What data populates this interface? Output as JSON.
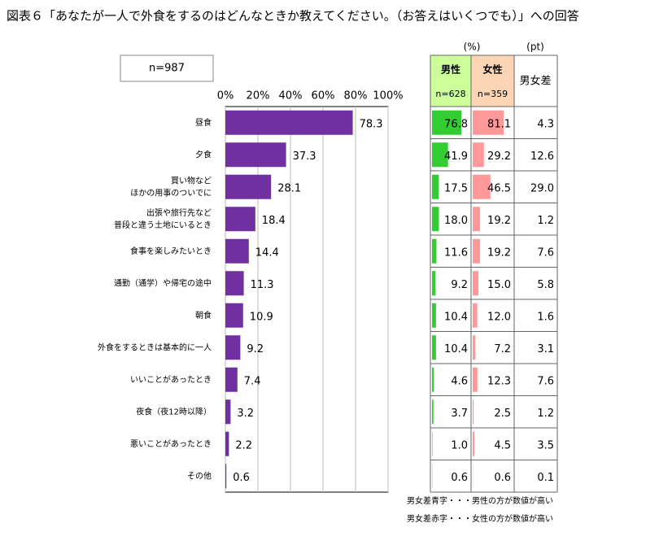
{
  "title": "図表６「あなたが一人で外食をするのはどんなときか教えてください。（お答えはいくつでも）」への回答",
  "sample_label": "n=987",
  "chart_data": {
    "type": "hbar",
    "color": "#7030a0",
    "categories": [
      [
        "昼食"
      ],
      [
        "夕食"
      ],
      [
        "買い物など",
        "ほかの用事のついでに"
      ],
      [
        "出張や旅行先など",
        "普段と違う土地にいるとき"
      ],
      [
        "食事を楽しみたいとき"
      ],
      [
        "通勤（通学）や帰宅の途中"
      ],
      [
        "朝食"
      ],
      [
        "外食をするときは基本的に一人"
      ],
      [
        "いいことがあったとき"
      ],
      [
        "夜食（夜12時以降）"
      ],
      [
        "悪いことがあったとき"
      ],
      [
        "その他"
      ]
    ],
    "values": [
      78.3,
      37.3,
      28.1,
      18.4,
      14.4,
      11.3,
      10.9,
      9.2,
      7.4,
      3.2,
      2.2,
      0.6
    ],
    "xlim": [
      0,
      100
    ],
    "xticks": [
      {
        "value": 0,
        "label": "0%"
      },
      {
        "value": 20,
        "label": "20%"
      },
      {
        "value": 40,
        "label": "40%"
      },
      {
        "value": 60,
        "label": "60%"
      },
      {
        "value": 80,
        "label": "80%"
      },
      {
        "value": 100,
        "label": "100%"
      }
    ]
  },
  "table": {
    "unit_pct": "(%)",
    "unit_pt": "(pt)",
    "male": {
      "name": "男性",
      "n": "n=628",
      "header_color": "#ccff99",
      "color": "#33cc33",
      "values": [
        76.8,
        41.9,
        17.5,
        18.0,
        11.6,
        9.2,
        10.4,
        10.4,
        4.6,
        3.7,
        1.0,
        0.6
      ],
      "value_labels": [
        "76.8",
        "41.9",
        "17.5",
        "18.0",
        "11.6",
        "9.2",
        "10.4",
        "10.4",
        "4.6",
        "3.7",
        "1.0",
        "0.6"
      ]
    },
    "female": {
      "name": "女性",
      "n": "n=359",
      "header_color": "#fcd5b4",
      "color": "#ff9999",
      "values": [
        81.1,
        29.2,
        46.5,
        19.2,
        19.2,
        15.0,
        12.0,
        7.2,
        12.3,
        2.5,
        4.5,
        0.6
      ],
      "value_labels": [
        "81.1",
        "29.2",
        "46.5",
        "19.2",
        "19.2",
        "15.0",
        "12.0",
        "7.2",
        "12.3",
        "2.5",
        "4.5",
        "0.6"
      ]
    },
    "diff": {
      "name": "男女差",
      "values": [
        4.3,
        12.6,
        29.0,
        1.2,
        7.6,
        5.8,
        1.6,
        3.1,
        7.6,
        1.2,
        3.5,
        0.1
      ],
      "value_labels": [
        "4.3",
        "12.6",
        "29.0",
        "1.2",
        "7.6",
        "5.8",
        "1.6",
        "3.1",
        "7.6",
        "1.2",
        "3.5",
        "0.1"
      ],
      "colors": [
        "#e0001b",
        "#1f78c8",
        "#e0001b",
        "#e0001b",
        "#e0001b",
        "#e0001b",
        "#e0001b",
        "#1f78c8",
        "#e0001b",
        "#1f78c8",
        "#e0001b",
        "#1f78c8"
      ]
    },
    "notes": [
      {
        "text": "男女差青字・・・男性の方が数値が高い",
        "color": "#1f78c8"
      },
      {
        "text": "男女差赤字・・・女性の方が数値が高い",
        "color": "#e0001b"
      }
    ]
  }
}
